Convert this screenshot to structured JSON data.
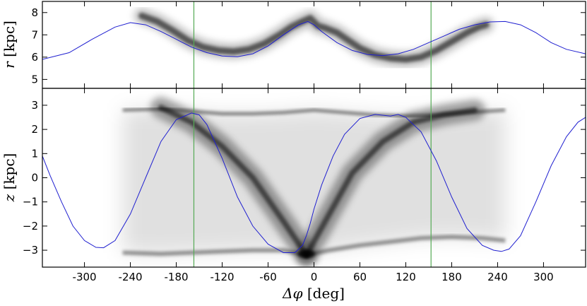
{
  "chart_data": [
    {
      "type": "line",
      "ylabel_symbol": "r",
      "ylabel_unit": "[kpc]",
      "xlim": [
        -355,
        355
      ],
      "ylim": [
        4.6,
        8.5
      ],
      "yticks": [
        5,
        6,
        7,
        8
      ],
      "ytick_labels": [
        "5",
        "6",
        "7",
        "8"
      ],
      "orbit_color": "#1f1fd0",
      "density_color": "#000000",
      "marker_color": "#55aa55",
      "orbit": {
        "name": "",
        "x": [
          -355,
          -320,
          -290,
          -260,
          -240,
          -220,
          -200,
          -180,
          -160,
          -140,
          -120,
          -100,
          -80,
          -60,
          -40,
          -20,
          -8,
          0,
          10,
          30,
          50,
          70,
          90,
          110,
          130,
          150,
          170,
          190,
          210,
          230,
          250,
          270,
          290,
          310,
          330,
          355
        ],
        "y": [
          5.9,
          6.2,
          6.8,
          7.35,
          7.55,
          7.45,
          7.15,
          6.8,
          6.45,
          6.2,
          6.05,
          6.02,
          6.15,
          6.5,
          7.0,
          7.45,
          7.6,
          7.45,
          7.15,
          6.65,
          6.3,
          6.12,
          6.07,
          6.15,
          6.35,
          6.65,
          6.95,
          7.25,
          7.45,
          7.58,
          7.6,
          7.45,
          7.1,
          6.65,
          6.35,
          6.15
        ]
      },
      "stream_density": {
        "x": [
          -225,
          -205,
          -185,
          -165,
          -145,
          -125,
          -105,
          -85,
          -65,
          -45,
          -30,
          -15,
          -5,
          5,
          15,
          30,
          45,
          60,
          80,
          100,
          120,
          140,
          160,
          180,
          200,
          215,
          225
        ],
        "y": [
          7.85,
          7.6,
          7.2,
          6.75,
          6.45,
          6.3,
          6.25,
          6.35,
          6.6,
          7.0,
          7.35,
          7.6,
          7.75,
          7.4,
          7.3,
          7.1,
          6.75,
          6.4,
          6.1,
          5.95,
          5.9,
          6.0,
          6.3,
          6.7,
          7.1,
          7.35,
          7.45
        ]
      }
    },
    {
      "type": "line",
      "ylabel_symbol": "z",
      "ylabel_unit": "[kpc]",
      "xlabel_symbol": "Δφ",
      "xlabel_unit": "[deg]",
      "xlim": [
        -355,
        355
      ],
      "ylim": [
        -3.7,
        3.7
      ],
      "yticks": [
        -3,
        -2,
        -1,
        0,
        1,
        2,
        3
      ],
      "ytick_labels": [
        "−3",
        "−2",
        "−1",
        "0",
        "1",
        "2",
        "3"
      ],
      "xticks": [
        -300,
        -240,
        -180,
        -120,
        -60,
        0,
        60,
        120,
        180,
        240,
        300
      ],
      "xtick_labels": [
        "-300",
        "-240",
        "-180",
        "-120",
        "-60",
        "0",
        "60",
        "120",
        "180",
        "240",
        "300"
      ],
      "vlines_x": [
        -157,
        153
      ],
      "orbit": {
        "name": "",
        "x": [
          -355,
          -345,
          -330,
          -315,
          -300,
          -285,
          -275,
          -260,
          -240,
          -220,
          -200,
          -180,
          -160,
          -150,
          -140,
          -120,
          -100,
          -80,
          -60,
          -40,
          -25,
          -15,
          -10,
          -5,
          0,
          10,
          25,
          40,
          60,
          80,
          100,
          110,
          120,
          140,
          160,
          180,
          200,
          220,
          235,
          245,
          255,
          270,
          290,
          310,
          330,
          345,
          355
        ],
        "y": [
          0.9,
          0.1,
          -1.0,
          -2.0,
          -2.6,
          -2.88,
          -2.9,
          -2.6,
          -1.5,
          0.0,
          1.5,
          2.4,
          2.68,
          2.6,
          2.2,
          0.8,
          -0.8,
          -2.0,
          -2.75,
          -3.1,
          -3.1,
          -2.8,
          -2.4,
          -1.9,
          -1.3,
          -0.3,
          0.9,
          1.8,
          2.45,
          2.62,
          2.55,
          2.62,
          2.5,
          1.9,
          0.7,
          -0.8,
          -2.1,
          -2.8,
          -3.0,
          -3.05,
          -2.95,
          -2.4,
          -1.0,
          0.5,
          1.7,
          2.3,
          2.5
        ]
      },
      "stream_upper_edge": {
        "x": [
          -250,
          -200,
          -160,
          -120,
          -80,
          -40,
          0,
          40,
          80,
          120,
          160,
          200,
          250
        ],
        "y": [
          2.8,
          2.85,
          2.75,
          2.65,
          2.65,
          2.7,
          2.8,
          2.7,
          2.6,
          2.55,
          2.6,
          2.7,
          2.8
        ]
      },
      "stream_lower_edge": {
        "x": [
          -250,
          -200,
          -160,
          -120,
          -80,
          -40,
          -10,
          20,
          60,
          100,
          140,
          180,
          220,
          250
        ],
        "y": [
          -3.1,
          -3.15,
          -3.1,
          -3.05,
          -3.0,
          -3.0,
          -3.2,
          -3.0,
          -2.8,
          -2.65,
          -2.5,
          -2.45,
          -2.5,
          -2.6
        ]
      },
      "stream_arms": [
        {
          "x": [
            -10,
            -40,
            -80,
            -120,
            -160,
            -200
          ],
          "y": [
            -3.2,
            -1.8,
            0.0,
            1.3,
            2.3,
            2.9
          ]
        },
        {
          "x": [
            -10,
            20,
            50,
            90,
            130,
            170,
            210
          ],
          "y": [
            -3.2,
            -1.5,
            0.2,
            1.5,
            2.3,
            2.6,
            2.8
          ]
        }
      ]
    }
  ]
}
